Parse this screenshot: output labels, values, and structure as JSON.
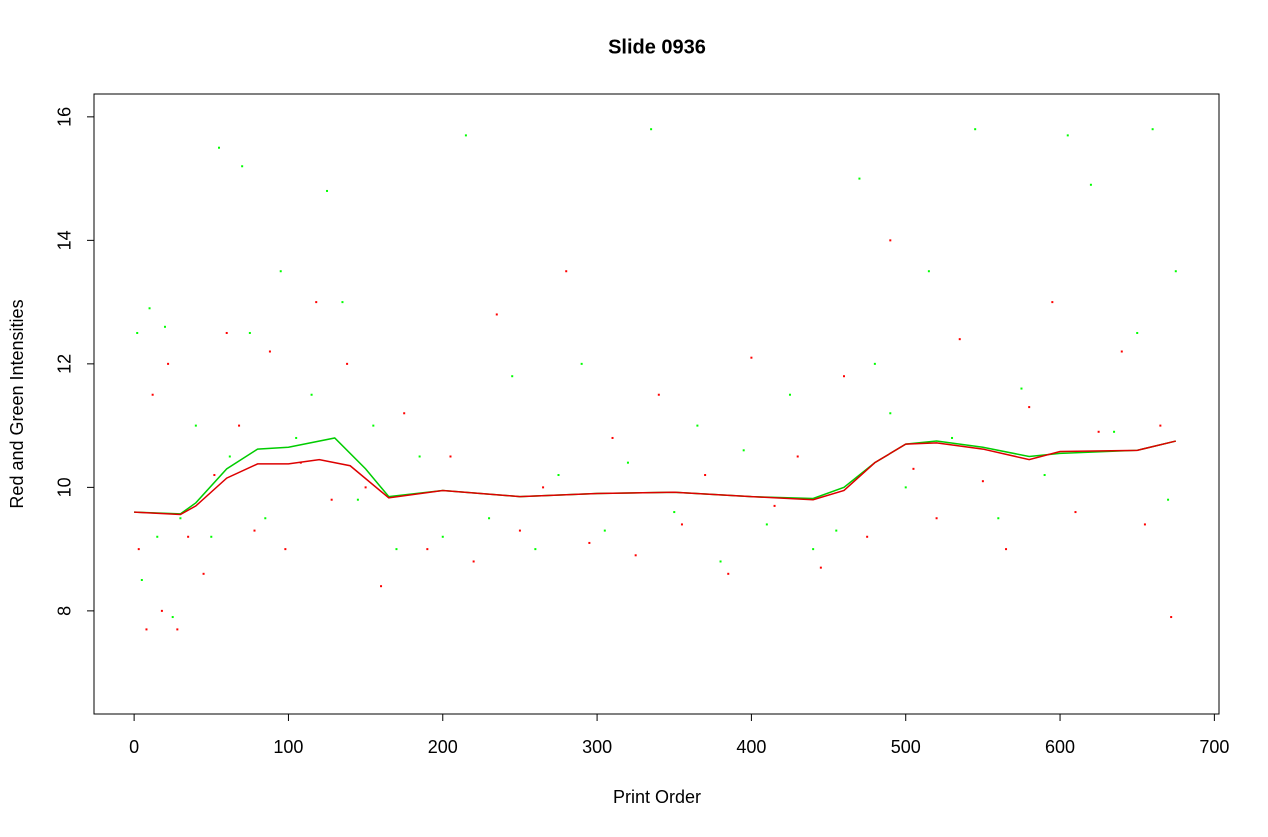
{
  "chart_data": {
    "type": "scatter",
    "title": "Slide 0936",
    "x_label": "Print Order",
    "y_label": "Red and Green Intensities",
    "xlim": [
      -26,
      703
    ],
    "ylim": [
      6.33,
      16.37
    ],
    "xticks": [
      0,
      100,
      200,
      300,
      400,
      500,
      600,
      700
    ],
    "yticks": [
      8,
      10,
      12,
      14,
      16
    ],
    "series": [
      {
        "color": "#00ff00",
        "style": "points",
        "x": [
          2,
          5,
          10,
          15,
          20,
          25,
          30,
          40,
          50,
          55,
          62,
          70,
          75,
          85,
          95,
          105,
          115,
          125,
          135,
          145,
          155,
          170,
          185,
          200,
          215,
          230,
          245,
          260,
          275,
          290,
          305,
          320,
          335,
          350,
          365,
          380,
          395,
          410,
          425,
          440,
          455,
          470,
          480,
          490,
          500,
          515,
          530,
          545,
          560,
          575,
          590,
          605,
          620,
          635,
          650,
          660,
          670,
          675
        ],
        "values": [
          12.5,
          8.5,
          12.9,
          9.2,
          12.6,
          7.9,
          9.5,
          11.0,
          9.2,
          15.5,
          10.5,
          15.2,
          12.5,
          9.5,
          13.5,
          10.8,
          11.5,
          14.8,
          13.0,
          9.8,
          11.0,
          9.0,
          10.5,
          9.2,
          15.7,
          9.5,
          11.8,
          9.0,
          10.2,
          12.0,
          9.3,
          10.4,
          15.8,
          9.6,
          11.0,
          8.8,
          10.6,
          9.4,
          11.5,
          9.0,
          9.3,
          15.0,
          12.0,
          11.2,
          10.0,
          13.5,
          10.8,
          15.8,
          9.5,
          11.6,
          10.2,
          15.7,
          14.9,
          10.9,
          12.5,
          15.8,
          9.8,
          13.5
        ]
      },
      {
        "color": "#ff0000",
        "style": "points",
        "x": [
          3,
          8,
          12,
          18,
          22,
          28,
          35,
          45,
          52,
          60,
          68,
          78,
          88,
          98,
          108,
          118,
          128,
          138,
          150,
          160,
          175,
          190,
          205,
          220,
          235,
          250,
          265,
          280,
          295,
          310,
          325,
          340,
          355,
          370,
          385,
          400,
          415,
          430,
          445,
          460,
          475,
          490,
          505,
          520,
          535,
          550,
          565,
          580,
          595,
          610,
          625,
          640,
          655,
          665,
          672
        ],
        "values": [
          9.0,
          7.7,
          11.5,
          8.0,
          12.0,
          7.7,
          9.2,
          8.6,
          10.2,
          12.5,
          11.0,
          9.3,
          12.2,
          9.0,
          10.4,
          13.0,
          9.8,
          12.0,
          10.0,
          8.4,
          11.2,
          9.0,
          10.5,
          8.8,
          12.8,
          9.3,
          10.0,
          13.5,
          9.1,
          10.8,
          8.9,
          11.5,
          9.4,
          10.2,
          8.6,
          12.1,
          9.7,
          10.5,
          8.7,
          11.8,
          9.2,
          14.0,
          10.3,
          9.5,
          12.4,
          10.1,
          9.0,
          11.3,
          13.0,
          9.6,
          10.9,
          12.2,
          9.4,
          11.0,
          7.9
        ]
      },
      {
        "color": "#00cc00",
        "style": "line",
        "x": [
          0,
          30,
          40,
          60,
          80,
          100,
          130,
          150,
          165,
          200,
          250,
          300,
          350,
          400,
          440,
          460,
          480,
          500,
          520,
          550,
          580,
          600,
          650,
          675
        ],
        "values": [
          9.6,
          9.57,
          9.75,
          10.3,
          10.62,
          10.65,
          10.8,
          10.3,
          9.85,
          9.95,
          9.85,
          9.9,
          9.92,
          9.85,
          9.82,
          10.0,
          10.4,
          10.7,
          10.75,
          10.65,
          10.5,
          10.55,
          10.6,
          10.75
        ]
      },
      {
        "color": "#dd0000",
        "style": "line",
        "x": [
          0,
          30,
          40,
          60,
          80,
          100,
          120,
          140,
          165,
          200,
          250,
          300,
          350,
          400,
          440,
          460,
          480,
          500,
          520,
          550,
          580,
          600,
          650,
          675
        ],
        "values": [
          9.6,
          9.56,
          9.7,
          10.15,
          10.38,
          10.38,
          10.45,
          10.35,
          9.83,
          9.95,
          9.85,
          9.9,
          9.92,
          9.85,
          9.8,
          9.95,
          10.4,
          10.7,
          10.72,
          10.62,
          10.45,
          10.58,
          10.6,
          10.75
        ]
      }
    ]
  }
}
